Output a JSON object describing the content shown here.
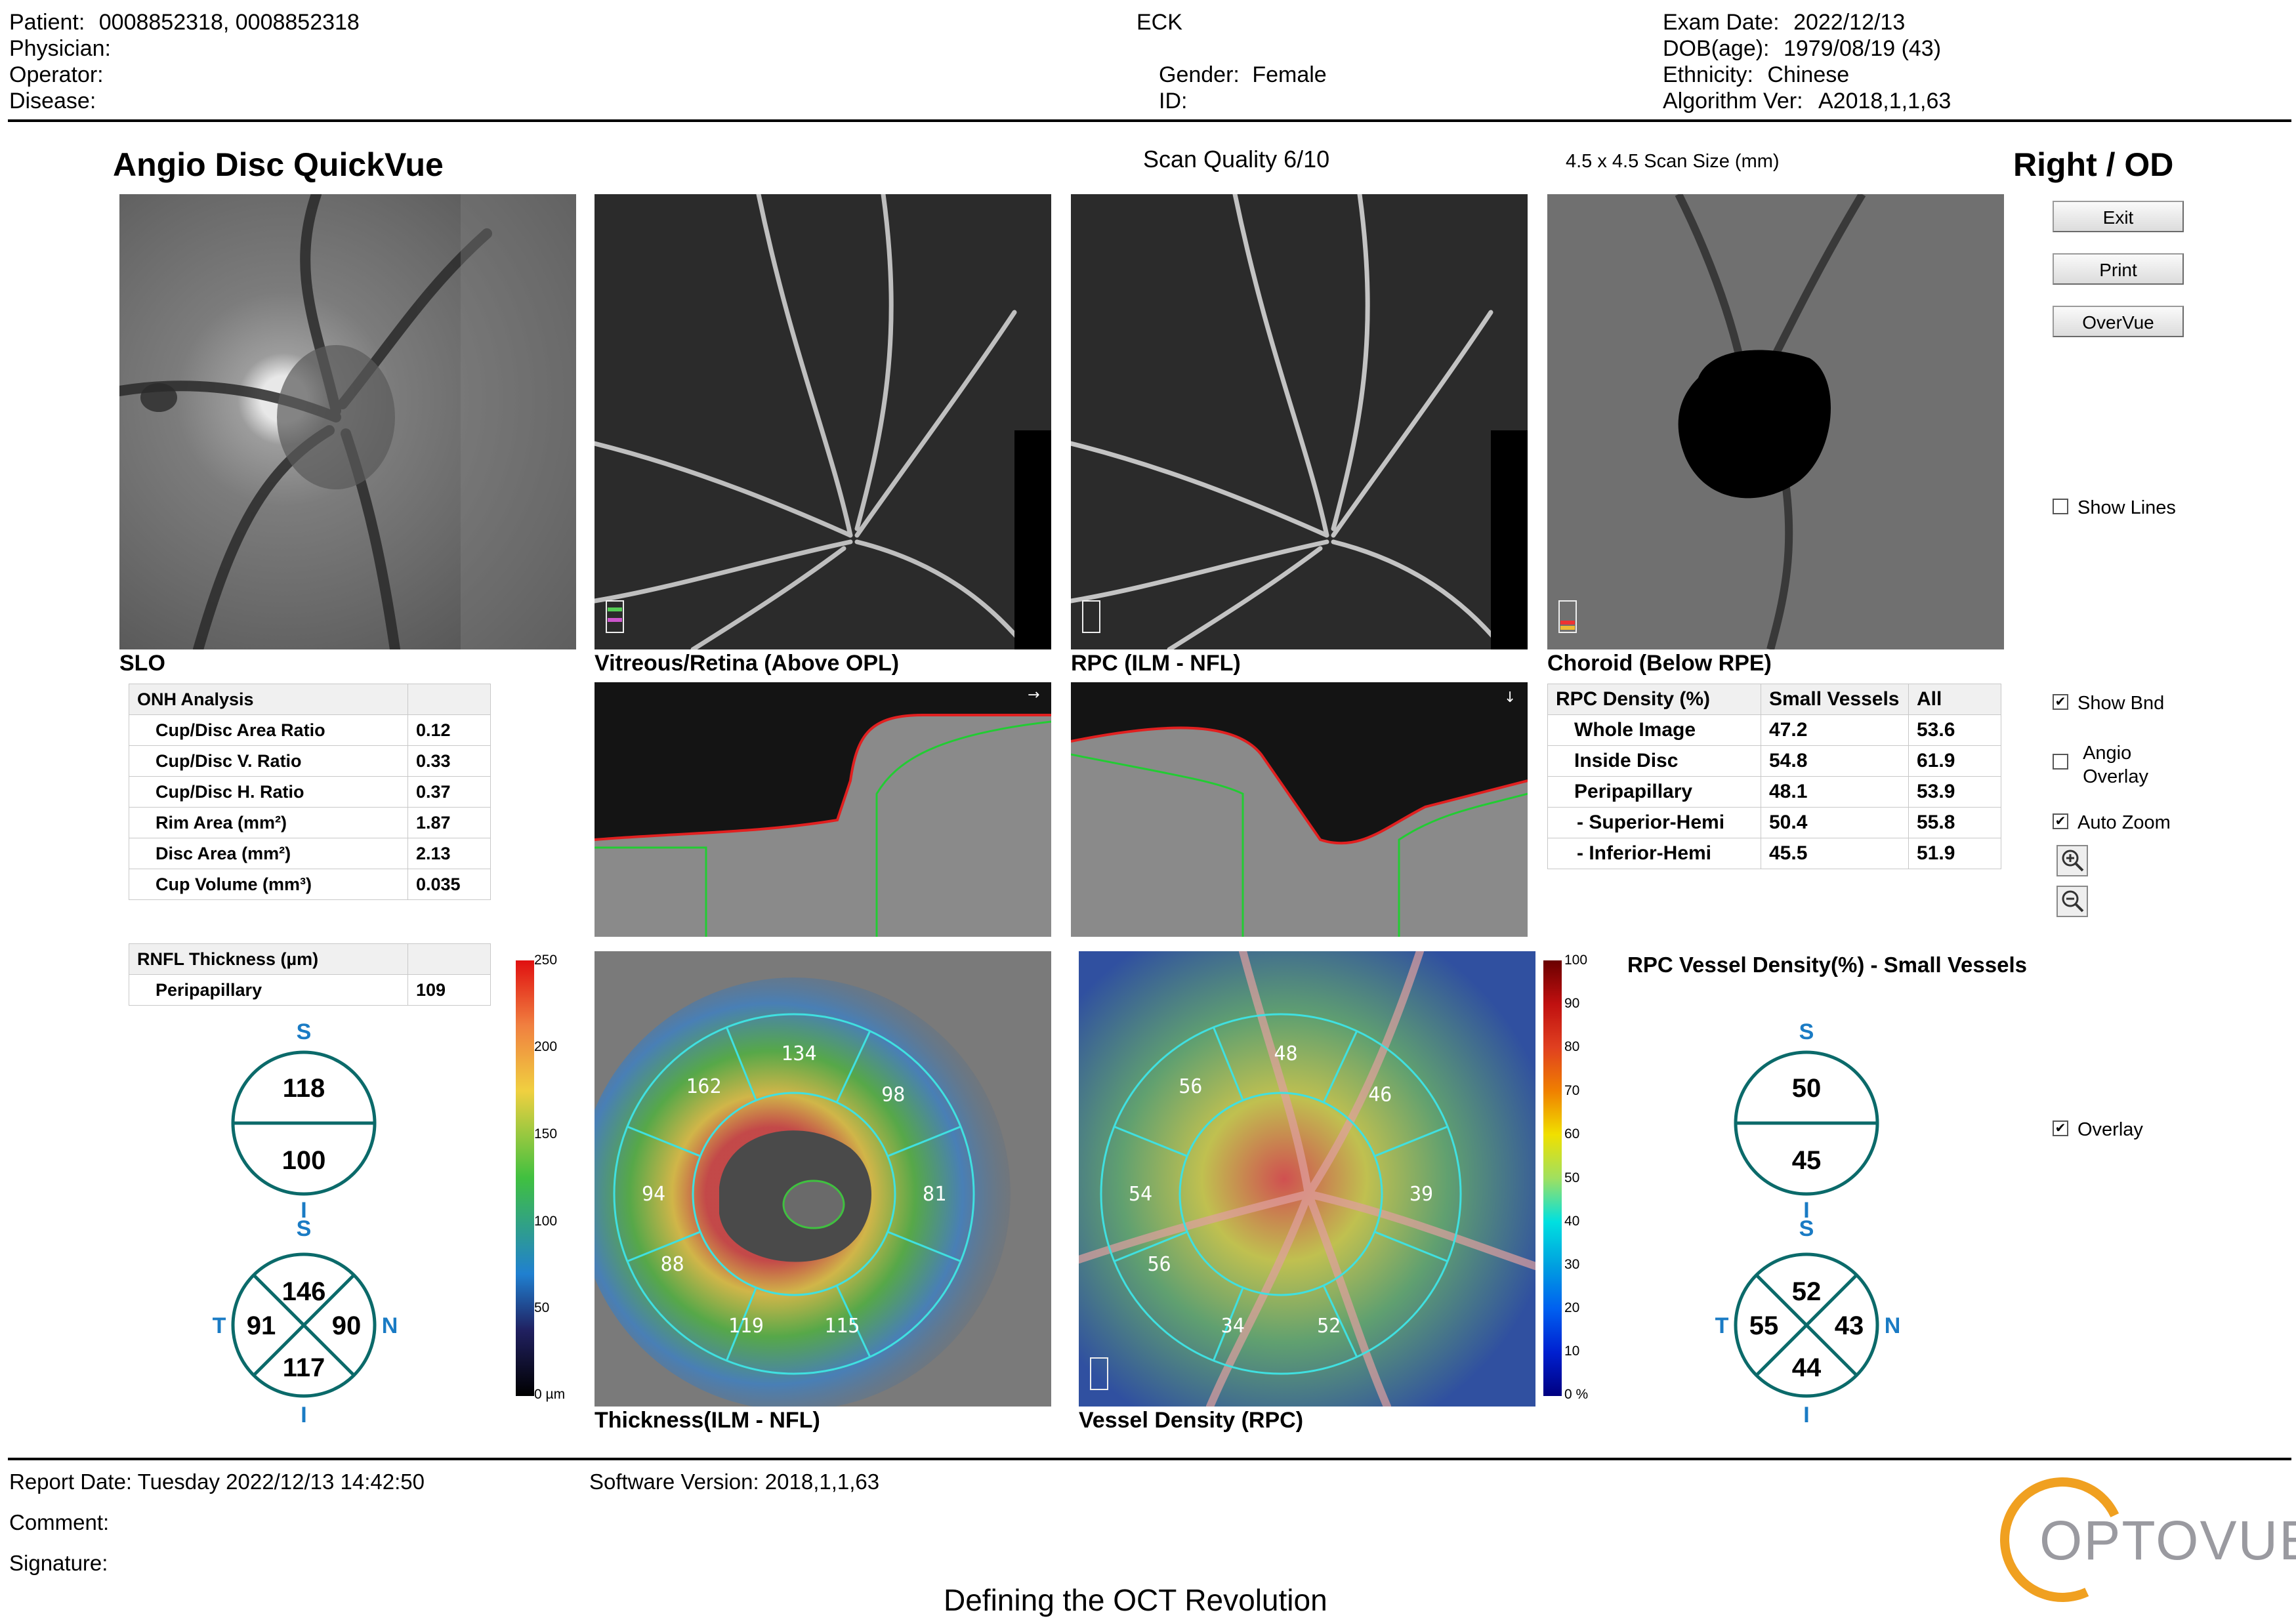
{
  "header": {
    "patient_label": "Patient:",
    "patient_value": "0008852318, 0008852318",
    "physician_label": "Physician:",
    "operator_label": "Operator:",
    "disease_label": "Disease:",
    "eck": "ECK",
    "gender_label": "Gender:",
    "gender_value": "Female",
    "id_label": "ID:",
    "exam_date_label": "Exam Date:",
    "exam_date_value": "2022/12/13",
    "dob_label": "DOB(age):",
    "dob_value": "1979/08/19 (43)",
    "ethnicity_label": "Ethnicity:",
    "ethnicity_value": "Chinese",
    "algorithm_label": "Algorithm Ver:",
    "algorithm_value": "A2018,1,1,63"
  },
  "report": {
    "title": "Angio Disc QuickVue",
    "scan_quality": "Scan Quality 6/10",
    "scan_size": "4.5 x 4.5 Scan Size (mm)",
    "eye": "Right / OD"
  },
  "buttons": {
    "exit": "Exit",
    "print": "Print",
    "overvue": "OverVue"
  },
  "checkboxes": {
    "show_lines": {
      "label": "Show Lines",
      "checked": false
    },
    "show_bnd": {
      "label": "Show Bnd",
      "checked": true
    },
    "angio_overlay_1": "Angio",
    "angio_overlay_2": "Overlay",
    "angio_overlay_checked": false,
    "auto_zoom": {
      "label": "Auto Zoom",
      "checked": true
    },
    "overlay": {
      "label": "Overlay",
      "checked": true
    }
  },
  "captions": {
    "slo": "SLO",
    "vitreous": "Vitreous/Retina (Above OPL)",
    "rpc": "RPC (ILM - NFL)",
    "choroid": "Choroid (Below RPE)",
    "thickness": "Thickness(ILM - NFL)",
    "vessel_density": "Vessel Density (RPC)"
  },
  "onh": {
    "header": "ONH Analysis",
    "rows": [
      {
        "label": "Cup/Disc Area Ratio",
        "value": "0.12"
      },
      {
        "label": "Cup/Disc V. Ratio",
        "value": "0.33"
      },
      {
        "label": "Cup/Disc H. Ratio",
        "value": "0.37"
      },
      {
        "label": "Rim Area (mm²)",
        "value": "1.87"
      },
      {
        "label": "Disc Area (mm²)",
        "value": "2.13"
      },
      {
        "label": "Cup Volume (mm³)",
        "value": "0.035"
      }
    ]
  },
  "rnfl": {
    "header": "RNFL Thickness (µm)",
    "rows": [
      {
        "label": "Peripapillary",
        "value": "109"
      }
    ]
  },
  "rpc_density": {
    "headers": [
      "RPC Density (%)",
      "Small Vessels",
      "All"
    ],
    "rows": [
      {
        "label": "Whole Image",
        "small": "47.2",
        "all": "53.6"
      },
      {
        "label": "Inside Disc",
        "small": "54.8",
        "all": "61.9"
      },
      {
        "label": "Peripapillary",
        "small": "48.1",
        "all": "53.9"
      },
      {
        "label": "- Superior-Hemi",
        "small": "50.4",
        "all": "55.8"
      },
      {
        "label": "- Inferior-Hemi",
        "small": "45.5",
        "all": "51.9"
      }
    ]
  },
  "rpc_vessel_title": "RPC Vessel Density(%) - Small Vessels",
  "thickness_diagram": {
    "hemi_superior": "118",
    "hemi_inferior": "100",
    "quad_superior": "146",
    "quad_temporal": "91",
    "quad_nasal": "90",
    "quad_inferior": "117",
    "lbl_s": "S",
    "lbl_i": "I",
    "lbl_t": "T",
    "lbl_n": "N"
  },
  "vessel_diagram": {
    "hemi_superior": "50",
    "hemi_inferior": "45",
    "quad_superior": "52",
    "quad_temporal": "55",
    "quad_nasal": "43",
    "quad_inferior": "44",
    "lbl_s": "S",
    "lbl_i": "I",
    "lbl_t": "T",
    "lbl_n": "N"
  },
  "thickness_sectors": [
    "162",
    "134",
    "98",
    "94",
    "81",
    "88",
    "119",
    "115"
  ],
  "density_sectors": [
    "56",
    "48",
    "46",
    "54",
    "39",
    "56",
    "34",
    "52"
  ],
  "thickness_scale": {
    "ticks": [
      "250",
      "200",
      "150",
      "100",
      "50",
      "0 µm"
    ]
  },
  "density_scale": {
    "ticks": [
      "100",
      "90",
      "80",
      "70",
      "60",
      "50",
      "40",
      "30",
      "20",
      "10",
      "0 %"
    ]
  },
  "footer": {
    "report_date": "Report Date: Tuesday 2022/12/13 14:42:50",
    "software_version": "Software Version: 2018,1,1,63",
    "comment": "Comment:",
    "signature": "Signature:",
    "tagline": "Defining the OCT Revolution",
    "logo": "OPTOVUE"
  }
}
